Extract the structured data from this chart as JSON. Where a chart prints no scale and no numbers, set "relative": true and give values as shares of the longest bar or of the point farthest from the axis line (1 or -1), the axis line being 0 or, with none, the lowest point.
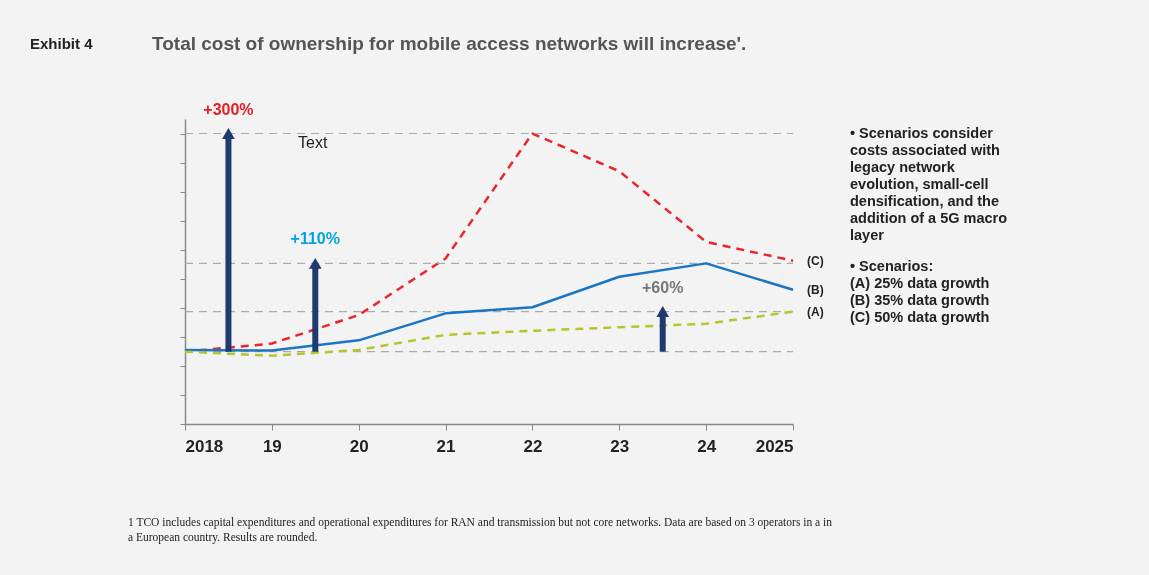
{
  "chart_data": {
    "type": "line",
    "title": "Total cost of ownership for mobile access networks will increase'.",
    "relative": true,
    "x": [
      2018,
      2019,
      2020,
      2021,
      2022,
      2023,
      2024,
      2025
    ],
    "xlim": [
      2018,
      2025
    ],
    "xticks": [
      2018,
      {
        "value": 2019,
        "label": "19"
      },
      {
        "value": 2020,
        "label": "20"
      },
      {
        "value": 2021,
        "label": "21"
      },
      {
        "value": 2022,
        "label": "22"
      },
      {
        "value": 2023,
        "label": "23"
      },
      {
        "value": 2024,
        "label": "24"
      },
      2025
    ],
    "series": [
      {
        "name": "(C)",
        "color": "#e8262a",
        "line_style": "dashed",
        "values": [
          0.249,
          0.277,
          0.375,
          0.57,
          1.0,
          0.87,
          0.627,
          0.562
        ]
      },
      {
        "name": "(B)",
        "color": "#1a75c4",
        "line_style": "solid",
        "values": [
          0.255,
          0.253,
          0.288,
          0.381,
          0.402,
          0.507,
          0.553,
          0.462
        ]
      },
      {
        "name": "(A)",
        "color": "#b8c42a",
        "line_style": "dashed",
        "values": [
          0.249,
          0.235,
          0.255,
          0.307,
          0.321,
          0.333,
          0.345,
          0.387
        ]
      }
    ],
    "ref_lines": [
      {
        "axis": "y",
        "value": 1.0,
        "color": "#aaaaaa",
        "line_style": "dashed"
      },
      {
        "axis": "y",
        "value": 0.553,
        "color": "#aaaaaa",
        "line_style": "dashed"
      },
      {
        "axis": "y",
        "value": 0.387,
        "color": "#aaaaaa",
        "line_style": "dashed"
      },
      {
        "axis": "y",
        "value": 0.249,
        "color": "#aaaaaa",
        "line_style": "dashed"
      }
    ],
    "annotations": [
      "Exhibit 4",
      "Text",
      {
        "text": "+300%",
        "x": 2018.5,
        "y": 1.0
      },
      {
        "text": "+110%",
        "x": 2019.5,
        "y": 0.553
      },
      {
        "text": "+60%",
        "x": 2023.5,
        "y": 0.387
      },
      "• Scenarios consider costs associated with legacy network evolution, small-cell densification, and the addition of a 5G macro layer",
      "• Scenarios:\n(A) 25% data growth\n(B) 35% data growth\n(C) 50% data growth",
      "1 TCO includes capital expenditures and operational expenditures for RAN and transmission but not core networks. Data are based on 3 operators in a in a European country. Results are rounded."
    ],
    "legend": false,
    "grid": false,
    "marker": "none"
  }
}
